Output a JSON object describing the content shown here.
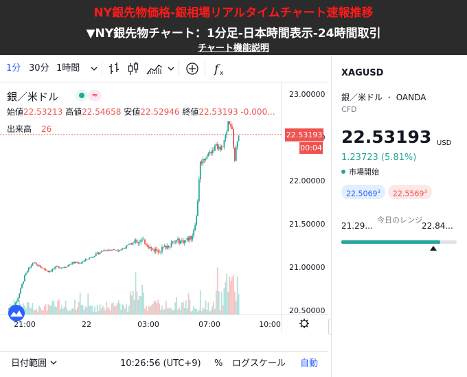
{
  "banner": {
    "title": "NY銀先物価格-銀相場リアルタイムチャート速報推移",
    "subtitle": "▼NY銀先物チャート：1分足-日本時間表示-24時間取引",
    "link": "チャート機能説明"
  },
  "toolbar": {
    "intervals": [
      "1分",
      "30分",
      "1時間"
    ],
    "active_interval": "1分",
    "icons": [
      "chevron-down-icon",
      "bar-chart-icon",
      "candle-chart-icon",
      "area-chart-icon",
      "chevron-down-icon",
      "add-circle-icon",
      "function-icon"
    ]
  },
  "legend": {
    "symbol": "銀／米ドル",
    "approx": "≈",
    "open_label": "始値",
    "open": "22.53213",
    "high_label": "高値",
    "high": "22.54658",
    "low_label": "安値",
    "low": "22.52946",
    "close_label": "終値",
    "close": "22.53193",
    "change": "-0.000...",
    "volume_label": "出来高",
    "volume": "26"
  },
  "price_axis": {
    "ticks": [
      "23.00000",
      "22.50000",
      "22.00000",
      "21.50000",
      "21.00000",
      "20.50000"
    ],
    "current_price": "22.53193",
    "countdown": "00:04"
  },
  "time_axis": {
    "ticks": [
      "21:00",
      "22",
      "03:00",
      "07:00",
      "10:00"
    ]
  },
  "chart_data": {
    "type": "candlestick",
    "price_range": [
      20.3,
      23.1
    ],
    "time_range": [
      "21:00",
      "10:30"
    ],
    "approx_path": [
      [
        20.0,
        20.52
      ],
      [
        20.5,
        20.6
      ],
      [
        21.0,
        20.9
      ],
      [
        21.5,
        21.05
      ],
      [
        22.0,
        21.0
      ],
      [
        22.5,
        20.95
      ],
      [
        23.0,
        21.0
      ],
      [
        23.5,
        21.0
      ],
      [
        0.0,
        21.05
      ],
      [
        0.5,
        21.05
      ],
      [
        1.0,
        21.1
      ],
      [
        1.5,
        21.15
      ],
      [
        2.0,
        21.2
      ],
      [
        2.5,
        21.2
      ],
      [
        3.0,
        21.2
      ],
      [
        3.5,
        21.25
      ],
      [
        4.0,
        21.3
      ],
      [
        4.5,
        21.3
      ],
      [
        5.0,
        21.2
      ],
      [
        5.5,
        21.2
      ],
      [
        6.0,
        21.25
      ],
      [
        6.5,
        21.3
      ],
      [
        7.0,
        21.3
      ],
      [
        7.5,
        21.35
      ],
      [
        7.8,
        21.6
      ],
      [
        8.0,
        22.2
      ],
      [
        8.5,
        22.3
      ],
      [
        9.0,
        22.4
      ],
      [
        9.3,
        22.35
      ],
      [
        9.6,
        22.5
      ],
      [
        9.8,
        22.7
      ],
      [
        10.0,
        22.6
      ],
      [
        10.2,
        22.2
      ],
      [
        10.3,
        22.45
      ],
      [
        10.43,
        22.53
      ]
    ]
  },
  "bottom_bar": {
    "date_range": "日付範囲",
    "clock": "10:26:56 (UTC+9)",
    "percent": "%",
    "log": "ログスケール",
    "auto": "自動"
  },
  "side": {
    "symbol": "XAGUSD",
    "name": "銀／米ドル",
    "dot": "・",
    "exchange": "OANDA",
    "type": "CFD",
    "price": "22.53193",
    "currency": "USD",
    "change": "1.23723 (5.81%)",
    "status": "市場開始",
    "bid": "22.5069",
    "bid_sup": "3",
    "ask": "22.5569",
    "ask_sup": "3",
    "range_low": "21.29...",
    "range_high": "22.84...",
    "range_label": "今日のレンジ",
    "range_fraction": 0.86,
    "accent_green": "#26a69a",
    "accent_red": "#ef5350",
    "accent_blue": "#2962ff"
  }
}
